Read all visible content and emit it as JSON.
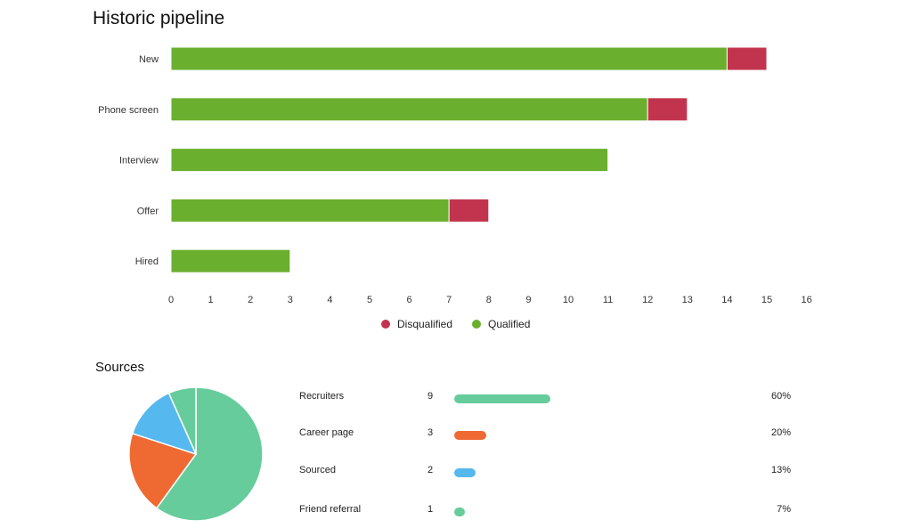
{
  "header": {
    "title": "Historic pipeline"
  },
  "chart_data": [
    {
      "type": "bar",
      "orientation": "horizontal",
      "stacked": true,
      "title": "Historic pipeline",
      "categories": [
        "New",
        "Phone screen",
        "Interview",
        "Offer",
        "Hired"
      ],
      "series": [
        {
          "name": "Qualified",
          "color": "#6aaf2e",
          "values": [
            14,
            12,
            11,
            7,
            3
          ]
        },
        {
          "name": "Disqualified",
          "color": "#c2344d",
          "values": [
            1,
            1,
            0,
            1,
            0
          ]
        }
      ],
      "xlim": [
        0,
        16
      ],
      "x_ticks": [
        "0",
        "1",
        "2",
        "3",
        "4",
        "5",
        "6",
        "7",
        "8",
        "9",
        "10",
        "11",
        "12",
        "13",
        "14",
        "15",
        "16"
      ],
      "legend": [
        {
          "name": "Disqualified",
          "color": "#c2344d"
        },
        {
          "name": "Qualified",
          "color": "#6aaf2e"
        }
      ],
      "legend_position": "bottom",
      "grid": false
    },
    {
      "type": "pie",
      "title": "Sources",
      "slices": [
        {
          "label": "Recruiters",
          "value": 9,
          "percent": "60%",
          "color": "#66cc9c"
        },
        {
          "label": "Career page",
          "value": 3,
          "percent": "20%",
          "color": "#ee6a32"
        },
        {
          "label": "Sourced",
          "value": 2,
          "percent": "13%",
          "color": "#55b8ee"
        },
        {
          "label": "Friend referral",
          "value": 1,
          "percent": "7%",
          "color": "#66cc9c"
        }
      ]
    }
  ],
  "sources": {
    "title": "Sources"
  }
}
